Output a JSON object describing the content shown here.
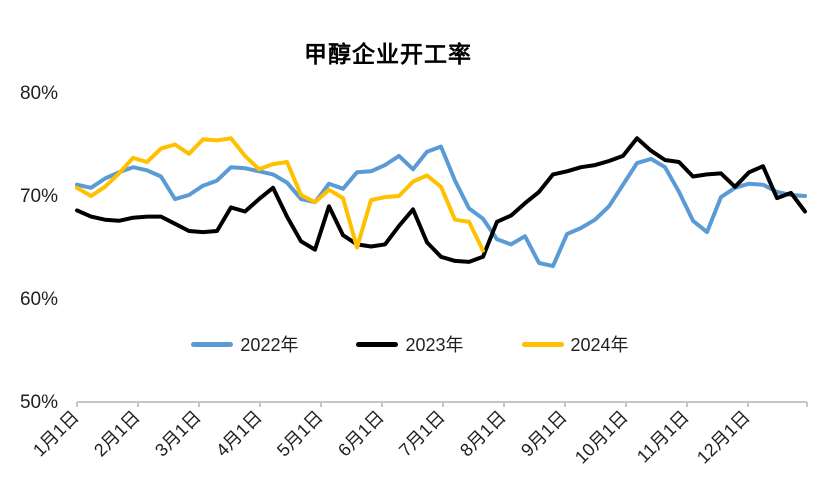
{
  "title": "甲醇企业开工率",
  "colors": {
    "series_2022": "#5B9BD5",
    "series_2023": "#000000",
    "series_2024": "#FFC000",
    "axis": "#C6C6C6",
    "label_text": "#1f1f1f"
  },
  "chart_data": {
    "type": "line",
    "title": "甲醇企业开工率",
    "unit": "%",
    "grid": false,
    "legend_position": "bottom",
    "y_axis": {
      "tick_labels": [
        "80%",
        "70%",
        "60%",
        "50%"
      ],
      "tick_values": [
        80,
        70,
        60,
        50
      ],
      "min": 50,
      "max": 80
    },
    "x_axis": {
      "tick_labels": [
        "1月1日",
        "2月1日",
        "3月1日",
        "4月1日",
        "5月1日",
        "6月1日",
        "7月1日",
        "8月1日",
        "9月1日",
        "10月1日",
        "11月1日",
        "12月1日"
      ],
      "frequency": "weekly"
    },
    "series": [
      {
        "name": "2022年",
        "color": "#5B9BD5",
        "values": [
          71.0,
          70.7,
          71.6,
          72.2,
          72.7,
          72.4,
          71.8,
          69.6,
          70.0,
          70.9,
          71.4,
          72.7,
          72.6,
          72.3,
          72.0,
          71.2,
          69.6,
          69.3,
          71.1,
          70.6,
          72.2,
          72.3,
          72.9,
          73.8,
          72.5,
          74.2,
          74.7,
          71.4,
          68.7,
          67.7,
          65.7,
          65.2,
          66.0,
          63.4,
          63.1,
          66.2,
          66.8,
          67.6,
          68.9,
          71.0,
          73.1,
          73.5,
          72.7,
          70.3,
          67.5,
          66.4,
          69.8,
          70.7,
          71.1,
          71.0,
          70.3,
          70.0,
          69.9
        ]
      },
      {
        "name": "2023年",
        "color": "#000000",
        "values": [
          68.5,
          67.9,
          67.6,
          67.5,
          67.8,
          67.9,
          67.9,
          67.2,
          66.5,
          66.4,
          66.5,
          68.8,
          68.4,
          69.6,
          70.7,
          67.9,
          65.5,
          64.7,
          68.9,
          66.1,
          65.2,
          65.0,
          65.2,
          67.0,
          68.6,
          65.4,
          64.0,
          63.6,
          63.5,
          64.0,
          67.4,
          68.0,
          69.2,
          70.3,
          72.0,
          72.3,
          72.7,
          72.9,
          73.3,
          73.8,
          75.5,
          74.3,
          73.4,
          73.2,
          71.8,
          72.0,
          72.1,
          70.8,
          72.2,
          72.8,
          69.7,
          70.2,
          68.4
        ]
      },
      {
        "name": "2024年",
        "color": "#FFC000",
        "values": [
          70.7,
          69.9,
          70.8,
          72.1,
          73.6,
          73.2,
          74.5,
          74.9,
          74.0,
          75.4,
          75.3,
          75.5,
          73.8,
          72.5,
          73.0,
          73.2,
          70.0,
          69.3,
          70.5,
          69.7,
          64.9,
          69.5,
          69.8,
          69.9,
          71.3,
          71.9,
          70.8,
          67.6,
          67.4,
          64.6
        ]
      }
    ]
  }
}
